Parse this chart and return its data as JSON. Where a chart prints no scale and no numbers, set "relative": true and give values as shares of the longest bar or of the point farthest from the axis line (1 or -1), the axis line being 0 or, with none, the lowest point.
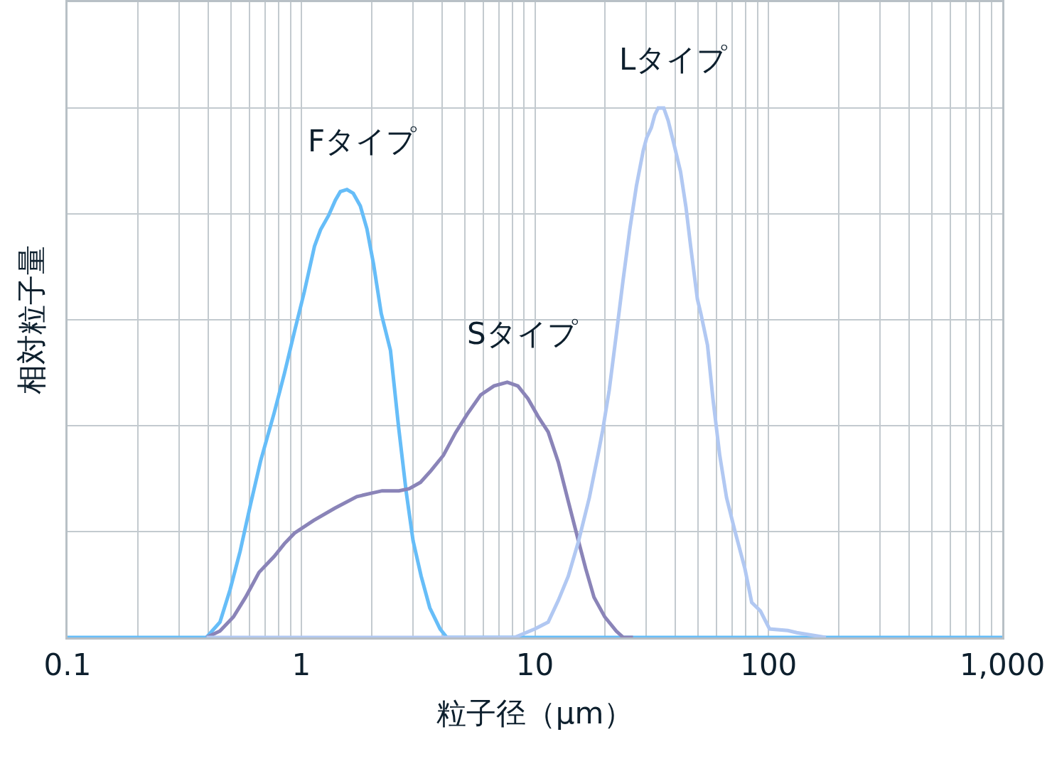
{
  "chart_data": {
    "type": "line",
    "xlabel": "粒子径（μm）",
    "ylabel": "相対粒子量",
    "log": "x",
    "xlim": [
      0.1,
      1000
    ],
    "xticks": [
      0.1,
      1,
      10,
      100,
      {
        "value": 1000,
        "label": "1,000"
      }
    ],
    "relative": true,
    "grid": true,
    "legend": false,
    "marker": "none",
    "line_style": "solid",
    "series": [
      {
        "name": "Fタイプ",
        "color": "#66bdf8",
        "x": [
          0.1,
          0.393,
          0.449,
          0.496,
          0.548,
          0.606,
          0.67,
          0.766,
          0.847,
          0.936,
          1.03,
          1.14,
          1.21,
          1.31,
          1.4,
          1.47,
          1.57,
          1.67,
          1.79,
          1.91,
          2.04,
          2.2,
          2.41,
          2.61,
          2.81,
          3.01,
          3.26,
          3.55,
          3.93,
          4.2,
          1000
        ],
        "values": [
          0,
          0,
          0.029,
          0.09,
          0.163,
          0.25,
          0.333,
          0.424,
          0.498,
          0.578,
          0.652,
          0.739,
          0.77,
          0.797,
          0.826,
          0.842,
          0.846,
          0.839,
          0.815,
          0.772,
          0.705,
          0.612,
          0.542,
          0.398,
          0.277,
          0.183,
          0.116,
          0.056,
          0.016,
          0,
          0
        ]
      },
      {
        "name": "Sタイプ",
        "color": "#8a84b8",
        "x": [
          0.393,
          0.449,
          0.513,
          0.578,
          0.66,
          0.766,
          0.847,
          0.936,
          1.13,
          1.39,
          1.73,
          2.02,
          2.22,
          2.62,
          2.9,
          3.24,
          3.59,
          4.06,
          4.58,
          5.14,
          5.86,
          6.68,
          7.62,
          8.46,
          9.34,
          10.3,
          11.4,
          12.6,
          13.9,
          15.2,
          16.5,
          17.9,
          19.9,
          22.3,
          23.9,
          26.3
        ],
        "values": [
          0,
          0.012,
          0.039,
          0.076,
          0.123,
          0.153,
          0.177,
          0.197,
          0.221,
          0.244,
          0.266,
          0.273,
          0.277,
          0.277,
          0.281,
          0.293,
          0.315,
          0.344,
          0.387,
          0.422,
          0.458,
          0.475,
          0.482,
          0.475,
          0.451,
          0.418,
          0.388,
          0.331,
          0.257,
          0.19,
          0.13,
          0.076,
          0.039,
          0.012,
          0,
          0
        ]
      },
      {
        "name": "Lタイプ",
        "color": "#b1c8f2",
        "x": [
          0.393,
          8.18,
          10.0,
          11.4,
          12.6,
          13.9,
          15.4,
          17.1,
          18.6,
          19.5,
          20.8,
          22.3,
          23.8,
          25.5,
          27.2,
          29.1,
          30.1,
          31.5,
          32.6,
          33.7,
          35.6,
          37.2,
          39.3,
          42.0,
          44.3,
          46.4,
          49.6,
          51.3,
          54.8,
          57.8,
          61.8,
          66.1,
          71.6,
          79.2,
          84.7,
          92.3,
          101,
          121,
          132,
          176
        ],
        "values": [
          0,
          0,
          0.016,
          0.029,
          0.07,
          0.116,
          0.183,
          0.264,
          0.344,
          0.391,
          0.467,
          0.572,
          0.672,
          0.772,
          0.853,
          0.92,
          0.944,
          0.963,
          0.987,
          1,
          1,
          0.976,
          0.933,
          0.88,
          0.813,
          0.739,
          0.639,
          0.612,
          0.552,
          0.451,
          0.344,
          0.264,
          0.203,
          0.13,
          0.066,
          0.05,
          0.016,
          0.013,
          0.009,
          0
        ]
      }
    ]
  }
}
